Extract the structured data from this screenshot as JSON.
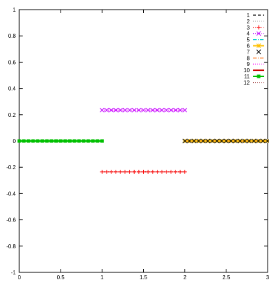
{
  "chart_data": {
    "type": "line",
    "xlim": [
      0,
      3
    ],
    "ylim": [
      -1,
      1
    ],
    "x_ticks": [
      "0",
      "0.5",
      "1",
      "1.5",
      "2",
      "2.5",
      "3"
    ],
    "y_ticks": [
      "1",
      "0.8",
      "0.6",
      "0.4",
      "0.2",
      "0",
      "-0.2",
      "-0.4",
      "-0.6",
      "-0.8",
      "-1"
    ],
    "grid": false,
    "legend_position": "top-right",
    "series": [
      {
        "name": "1",
        "color": "#000000",
        "style": "dashed",
        "marker": "none",
        "x_range": [
          0,
          1
        ],
        "y": 0
      },
      {
        "name": "2",
        "color": "#a0a0a0",
        "style": "dotted",
        "marker": "none",
        "x_range": [
          0,
          1
        ],
        "y": 0
      },
      {
        "name": "3",
        "color": "#ff0000",
        "style": "dotted",
        "marker": "plus",
        "x_range": [
          1,
          2
        ],
        "y": -0.235
      },
      {
        "name": "4",
        "color": "#c000ff",
        "style": "dotted",
        "marker": "cross",
        "x_range": [
          1,
          2
        ],
        "y": 0.235
      },
      {
        "name": "5",
        "color": "#00cccc",
        "style": "dashdot",
        "marker": "none",
        "x_range": [
          2,
          3
        ],
        "y": 0
      },
      {
        "name": "6",
        "color": "#ffc000",
        "style": "solid",
        "marker": "star",
        "x_range": [
          2,
          3
        ],
        "y": 0
      },
      {
        "name": "7",
        "color": "#000000",
        "style": "none",
        "marker": "cross",
        "x_range": [
          2,
          3
        ],
        "y": 0
      },
      {
        "name": "8",
        "color": "#ff6600",
        "style": "dashdot",
        "marker": "none",
        "x_range": [
          2,
          3
        ],
        "y": 0
      },
      {
        "name": "9",
        "color": "#ff00ff",
        "style": "dotted",
        "marker": "none",
        "x_range": [
          1,
          2
        ],
        "y": 0.235
      },
      {
        "name": "10",
        "color": "#cc0000",
        "style": "solid",
        "marker": "none",
        "x_range": [
          0,
          1
        ],
        "y": 0
      },
      {
        "name": "11",
        "color": "#00c000",
        "style": "solid",
        "marker": "square",
        "x_range": [
          0,
          1
        ],
        "y": 0
      },
      {
        "name": "12",
        "color": "#800000",
        "style": "dotted",
        "marker": "none",
        "x_range": [
          1,
          2
        ],
        "y": -0.235
      }
    ]
  }
}
